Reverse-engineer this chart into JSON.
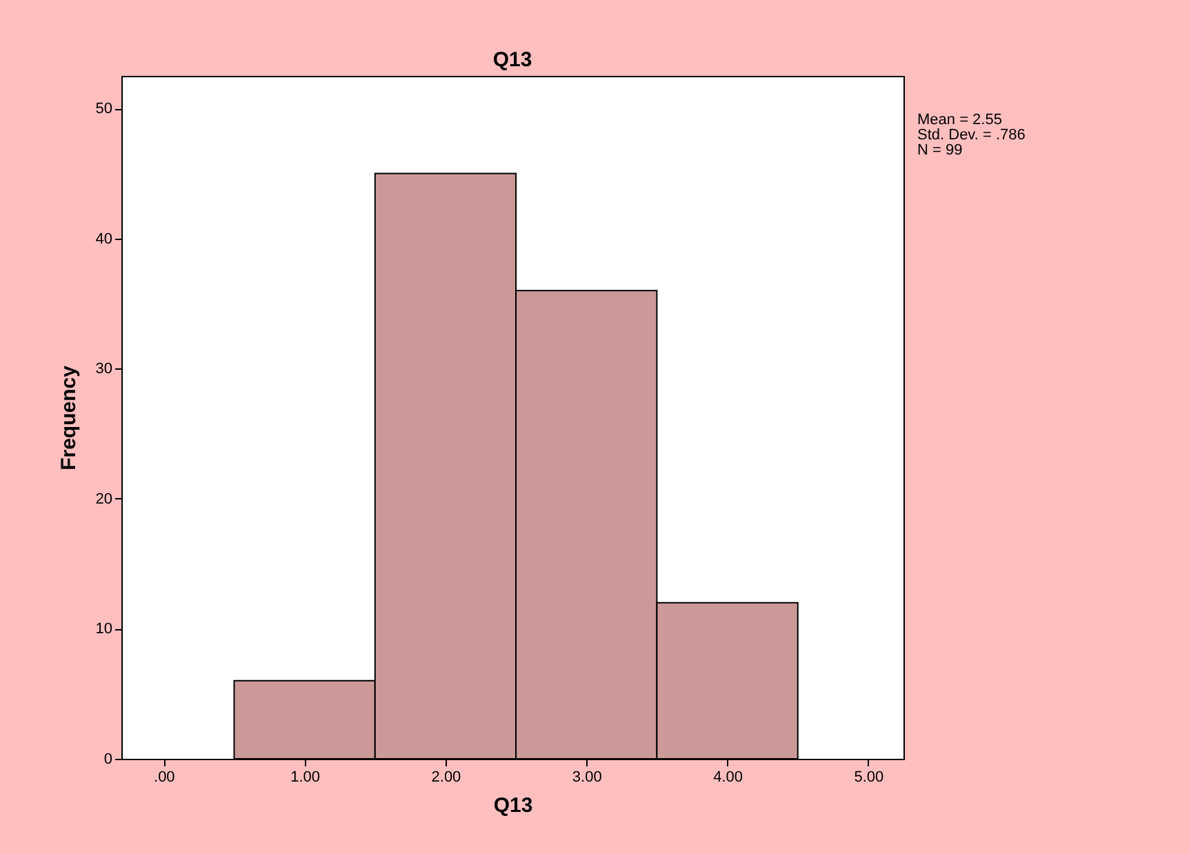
{
  "chart_data": {
    "type": "histogram",
    "title": "Q13",
    "xlabel": "Q13",
    "ylabel": "Frequency",
    "bins": [
      0.5,
      1.5,
      2.5,
      3.5,
      4.5
    ],
    "values": [
      6,
      45,
      36,
      12
    ],
    "color": "#cc9999",
    "xlim": [
      -0.3,
      5.25
    ],
    "ylim": [
      0,
      52.5
    ],
    "xticks": [
      {
        "value": 0,
        "label": ".00"
      },
      {
        "value": 1,
        "label": "1.00"
      },
      {
        "value": 2,
        "label": "2.00"
      },
      {
        "value": 3,
        "label": "3.00"
      },
      {
        "value": 4,
        "label": "4.00"
      },
      {
        "value": 5,
        "label": "5.00"
      }
    ],
    "yticks": [
      0,
      10,
      20,
      30,
      40,
      50
    ],
    "grid": false,
    "annotations": [
      "Mean = 2.55",
      "Std. Dev. = .786",
      "N = 99"
    ]
  }
}
